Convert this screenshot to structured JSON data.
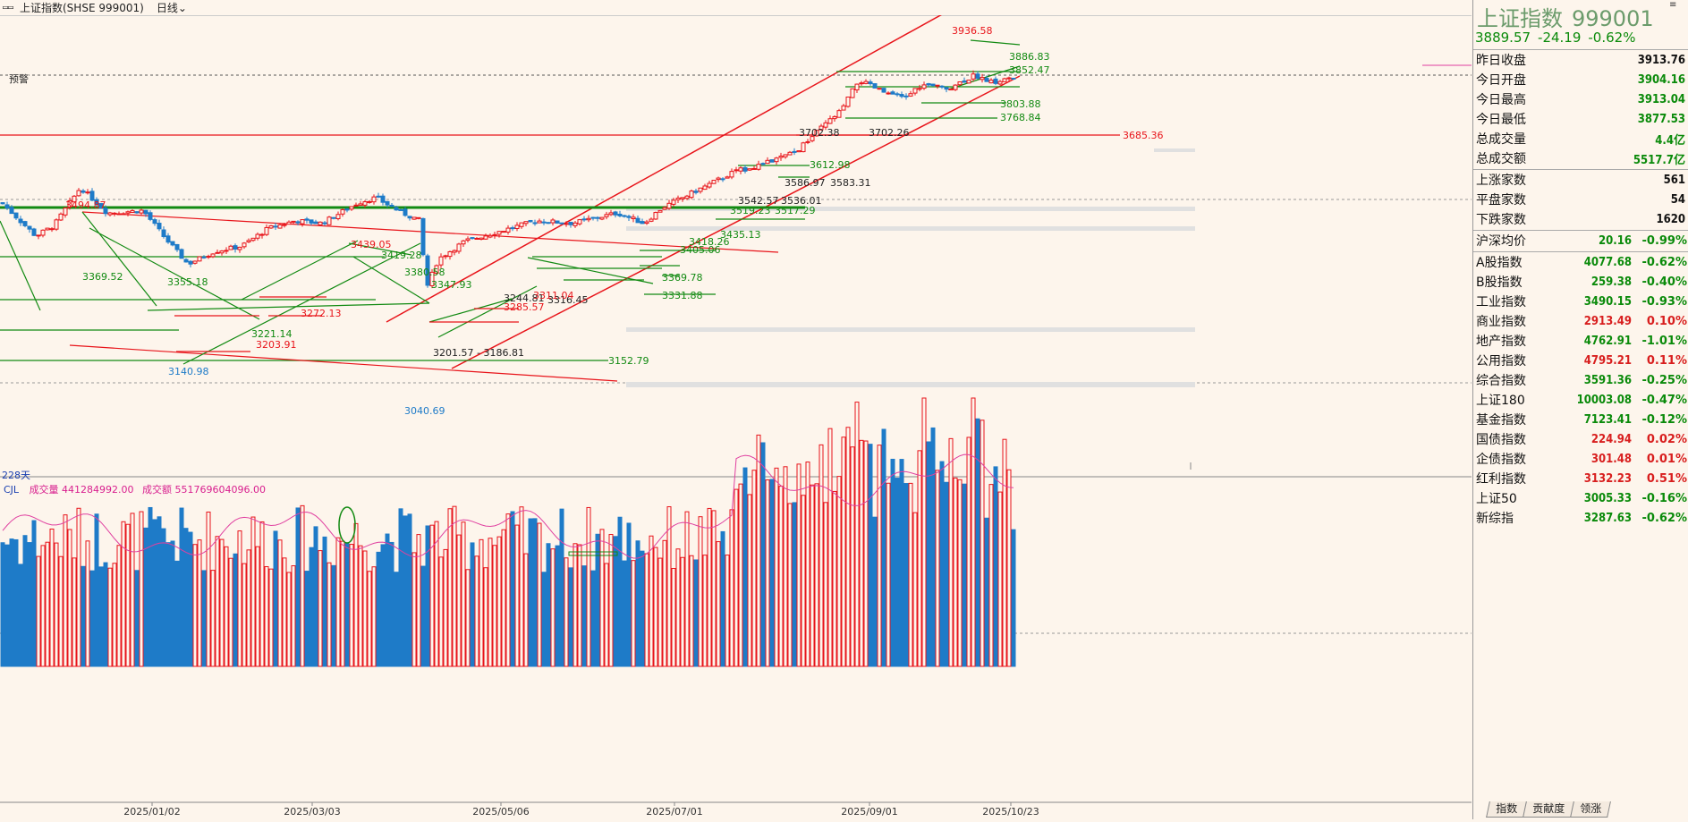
{
  "topbar": {
    "title": "上证指数(SHSE 999001)",
    "period": "日线"
  },
  "alert_label": "预警",
  "days_label": "228天",
  "volume_legend": {
    "name": "CJL",
    "vol_label": "成交量 441284992.00",
    "amt_label": "成交额 551769604096.00"
  },
  "dates": [
    "2025/01/02",
    "2025/03/03",
    "2025/05/06",
    "2025/07/01",
    "2025/09/01",
    "2025/10/23"
  ],
  "price_labels": {
    "high": "3936.58",
    "r1": "3886.83",
    "r2": "3852.47",
    "r3": "3803.88",
    "r4": "3768.84",
    "red1": "3685.36",
    "pair1": "3702.38",
    "pair2": "3702.26",
    "g1": "3612.98",
    "p1": "3586.97",
    "p2": "3583.31",
    "p3": "3542.57",
    "p4": "3536.01",
    "p5": "3519.23",
    "p6": "3517.29",
    "g2": "3435.13",
    "g3": "3418.26",
    "g4": "3405.06",
    "g5": "3369.78",
    "g6": "3331.88",
    "l1": "3494.87",
    "l2": "3439.05",
    "l3": "3419.28",
    "l4": "3380.58",
    "l5": "3347.93",
    "l6": "3355.18",
    "l7": "3369.52",
    "l8": "3272.13",
    "l9": "3221.14",
    "l10": "3203.91",
    "l11": "3140.98",
    "l12": "3201.57 - 3186.81",
    "l13": "3152.79",
    "l14": "3040.69",
    "l15": "3285.57",
    "l16": "3316.45",
    "l17": "3244.81",
    "l18": "3311.04"
  },
  "quote": {
    "name": "上证指数",
    "code": "999001",
    "price": "3889.57",
    "change": "-24.19",
    "pct": "-0.62%",
    "stats": [
      {
        "k": "昨日收盘",
        "v": "3913.76",
        "cls": "bk"
      },
      {
        "k": "今日开盘",
        "v": "3904.16",
        "cls": "dn"
      },
      {
        "k": "今日最高",
        "v": "3913.04",
        "cls": "dn"
      },
      {
        "k": "今日最低",
        "v": "3877.53",
        "cls": "dn"
      },
      {
        "k": "总成交量",
        "v": "4.4亿",
        "cls": "dn"
      },
      {
        "k": "总成交额",
        "v": "5517.7亿",
        "cls": "dn"
      }
    ],
    "breadth": [
      {
        "k": "上涨家数",
        "v": "561",
        "cls": "bk"
      },
      {
        "k": "平盘家数",
        "v": "54",
        "cls": "bk"
      },
      {
        "k": "下跌家数",
        "v": "1620",
        "cls": "bk"
      }
    ],
    "avg": {
      "k": "沪深均价",
      "v": "20.16",
      "c": "-0.99%"
    },
    "indices": [
      {
        "k": "A股指数",
        "v": "4077.68",
        "c": "-0.62%",
        "cls": "dn"
      },
      {
        "k": "B股指数",
        "v": "259.38",
        "c": "-0.40%",
        "cls": "dn"
      },
      {
        "k": "工业指数",
        "v": "3490.15",
        "c": "-0.93%",
        "cls": "dn"
      },
      {
        "k": "商业指数",
        "v": "2913.49",
        "c": "0.10%",
        "cls": "up"
      },
      {
        "k": "地产指数",
        "v": "4762.91",
        "c": "-1.01%",
        "cls": "dn"
      },
      {
        "k": "公用指数",
        "v": "4795.21",
        "c": "0.11%",
        "cls": "up"
      },
      {
        "k": "综合指数",
        "v": "3591.36",
        "c": "-0.25%",
        "cls": "dn"
      },
      {
        "k": "上证180",
        "v": "10003.08",
        "c": "-0.47%",
        "cls": "dn"
      },
      {
        "k": "基金指数",
        "v": "7123.41",
        "c": "-0.12%",
        "cls": "dn"
      },
      {
        "k": "国债指数",
        "v": "224.94",
        "c": "0.02%",
        "cls": "up"
      },
      {
        "k": "企债指数",
        "v": "301.48",
        "c": "0.01%",
        "cls": "up"
      },
      {
        "k": "红利指数",
        "v": "3132.23",
        "c": "0.51%",
        "cls": "up"
      },
      {
        "k": "上证50",
        "v": "3005.33",
        "c": "-0.16%",
        "cls": "dn"
      },
      {
        "k": "新综指",
        "v": "3287.63",
        "c": "-0.62%",
        "cls": "dn"
      }
    ]
  },
  "tabs": [
    "指数",
    "贡献度",
    "领涨"
  ]
}
